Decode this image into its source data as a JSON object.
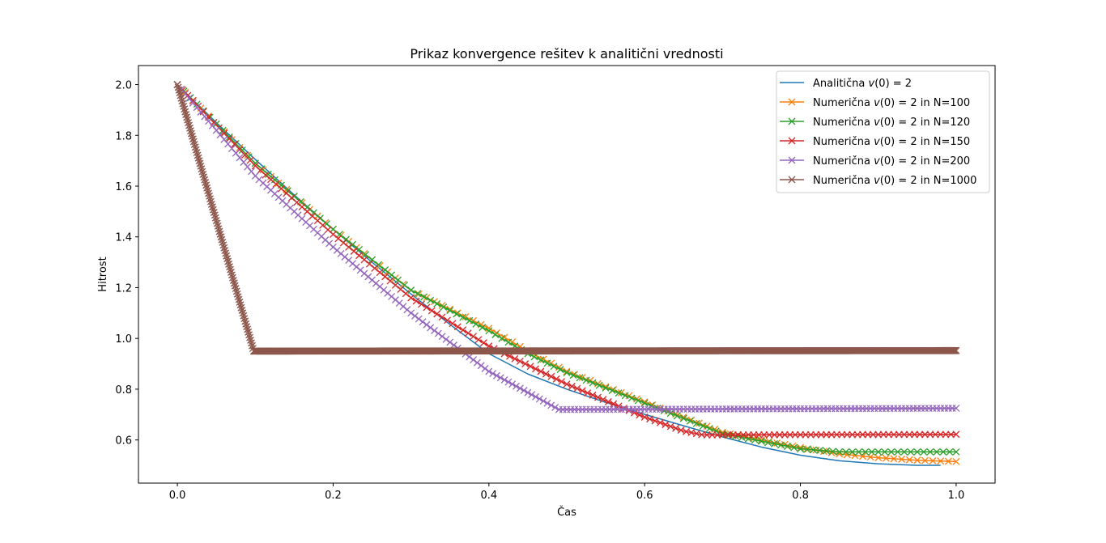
{
  "chart_data": {
    "type": "line",
    "title": "Prikaz konvergence rešitev k analitični vrednosti",
    "xlabel": "Čas",
    "ylabel": "Hitrost",
    "xlim": [
      -0.05,
      1.05
    ],
    "ylim": [
      0.43,
      2.075
    ],
    "xticks": [
      0.0,
      0.2,
      0.4,
      0.6,
      0.8,
      1.0
    ],
    "xtick_labels": [
      "0.0",
      "0.2",
      "0.4",
      "0.6",
      "0.8",
      "1.0"
    ],
    "yticks": [
      0.6,
      0.8,
      1.0,
      1.2,
      1.4,
      1.6,
      1.8,
      2.0
    ],
    "ytick_labels": [
      "0.6",
      "0.8",
      "1.0",
      "1.2",
      "1.4",
      "1.6",
      "1.8",
      "2.0"
    ],
    "grid": false,
    "legend_position": "top-right",
    "series": [
      {
        "name": "Analitična v(0) = 2",
        "legend_prefix": "Analitična ",
        "legend_math": "v(0) = 2",
        "legend_suffix": "",
        "color": "#1f77b4",
        "marker": "none",
        "x": [
          0.0,
          0.05,
          0.1,
          0.15,
          0.2,
          0.25,
          0.3,
          0.35,
          0.4,
          0.45,
          0.5,
          0.55,
          0.6,
          0.65,
          0.7,
          0.75,
          0.8,
          0.85,
          0.9,
          0.95,
          0.98
        ],
        "y": [
          2.0,
          1.85,
          1.705,
          1.565,
          1.43,
          1.3,
          1.175,
          1.055,
          0.94,
          0.86,
          0.8,
          0.748,
          0.701,
          0.656,
          0.612,
          0.572,
          0.54,
          0.518,
          0.506,
          0.5,
          0.5
        ]
      },
      {
        "name": "Numerična v(0) = 2 in N=100",
        "legend_prefix": "Numerična ",
        "legend_math": "v(0) = 2",
        "legend_suffix": " in N=100",
        "color": "#ff7f0e",
        "marker": "x",
        "n": 100,
        "x": [
          0.0,
          0.1,
          0.2,
          0.3,
          0.4,
          0.45,
          0.5,
          0.6,
          0.7,
          0.8,
          0.85,
          0.9,
          0.95,
          1.0
        ],
        "y": [
          2.0,
          1.69,
          1.43,
          1.19,
          1.04,
          0.95,
          0.87,
          0.75,
          0.63,
          0.57,
          0.545,
          0.53,
          0.52,
          0.515
        ]
      },
      {
        "name": "Numerična v(0) = 2 in N=120",
        "legend_prefix": "Numerična ",
        "legend_math": "v(0) = 2",
        "legend_suffix": " in N=120",
        "color": "#2ca02c",
        "marker": "x",
        "n": 120,
        "x": [
          0.0,
          0.1,
          0.2,
          0.3,
          0.4,
          0.45,
          0.5,
          0.6,
          0.7,
          0.8,
          0.85,
          1.0
        ],
        "y": [
          2.0,
          1.69,
          1.43,
          1.19,
          1.03,
          0.94,
          0.865,
          0.745,
          0.625,
          0.565,
          0.553,
          0.553
        ]
      },
      {
        "name": "Numerična v(0) = 2 in N=150",
        "legend_prefix": "Numerična ",
        "legend_math": "v(0) = 2",
        "legend_suffix": " in N=150",
        "color": "#d62728",
        "marker": "x",
        "n": 150,
        "x": [
          0.0,
          0.1,
          0.2,
          0.3,
          0.4,
          0.5,
          0.6,
          0.65,
          0.675,
          0.7,
          1.0
        ],
        "y": [
          2.0,
          1.68,
          1.41,
          1.16,
          0.97,
          0.82,
          0.69,
          0.635,
          0.62,
          0.62,
          0.622
        ]
      },
      {
        "name": "Numerična v(0) = 2 in N=200",
        "legend_prefix": "Numerična ",
        "legend_math": "v(0) = 2",
        "legend_suffix": " in N=200",
        "color": "#9467bd",
        "marker": "x",
        "n": 200,
        "x": [
          0.0,
          0.1,
          0.2,
          0.3,
          0.4,
          0.49,
          0.5,
          1.0
        ],
        "y": [
          2.0,
          1.64,
          1.36,
          1.1,
          0.87,
          0.72,
          0.72,
          0.725
        ]
      },
      {
        "name": "Numerična v(0) = 2 in N=1000",
        "legend_prefix": "Numerična ",
        "legend_math": "v(0) = 2",
        "legend_suffix": " in N=1000",
        "color": "#8c564b",
        "marker": "x",
        "n": 1000,
        "x": [
          0.0,
          0.098,
          0.1,
          1.0
        ],
        "y": [
          2.0,
          0.95,
          0.95,
          0.952
        ]
      }
    ]
  }
}
